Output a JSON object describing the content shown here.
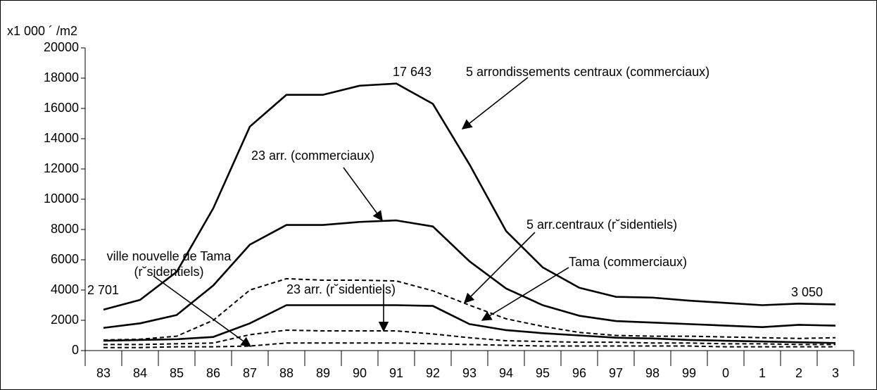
{
  "chart_data": {
    "type": "line",
    "y_label": "x1 000 ´ /m2",
    "categories": [
      "83",
      "84",
      "85",
      "86",
      "87",
      "88",
      "89",
      "90",
      "91",
      "92",
      "93",
      "94",
      "95",
      "96",
      "97",
      "98",
      "99",
      "0",
      "1",
      "2",
      "3"
    ],
    "ylim": [
      0,
      20000
    ],
    "yticks": [
      0,
      2000,
      4000,
      6000,
      8000,
      10000,
      12000,
      14000,
      16000,
      18000,
      20000
    ],
    "grid": false,
    "series": [
      {
        "name": "5 arrondissements centraux (commerciaux)",
        "color": "#000000",
        "dashed": false,
        "values": [
          2701,
          3350,
          5200,
          9400,
          14800,
          16900,
          16900,
          17500,
          17643,
          16300,
          12300,
          7900,
          5500,
          4150,
          3550,
          3500,
          3300,
          3150,
          3000,
          3100,
          3050
        ],
        "value_labels": [
          "2 701",
          null,
          null,
          null,
          null,
          null,
          null,
          null,
          "17 643",
          null,
          null,
          null,
          null,
          null,
          null,
          null,
          null,
          null,
          null,
          null,
          "3 050"
        ]
      },
      {
        "name": "23 arr. (commerciaux)",
        "color": "#000000",
        "dashed": false,
        "values": [
          1500,
          1800,
          2350,
          4300,
          7000,
          8300,
          8300,
          8500,
          8600,
          8200,
          5900,
          4100,
          3000,
          2300,
          1950,
          1850,
          1750,
          1650,
          1550,
          1700,
          1650
        ]
      },
      {
        "name": "Tama (commerciaux)",
        "color": "#000000",
        "dashed": false,
        "values": [
          650,
          700,
          750,
          900,
          1800,
          3000,
          3000,
          3000,
          3000,
          2950,
          1750,
          1350,
          1150,
          1000,
          850,
          800,
          700,
          650,
          600,
          550,
          500
        ]
      },
      {
        "name": "5 arr.centraux (r˘sidentiels)",
        "color": "#000000",
        "dashed": true,
        "values": [
          700,
          750,
          950,
          2000,
          4000,
          4750,
          4650,
          4650,
          4600,
          3950,
          3000,
          2100,
          1600,
          1200,
          1000,
          950,
          950,
          900,
          850,
          800,
          850
        ]
      },
      {
        "name": "23 arr. (r˘sidentiels)",
        "color": "#000000",
        "dashed": true,
        "values": [
          400,
          400,
          450,
          500,
          1050,
          1350,
          1300,
          1300,
          1300,
          1100,
          850,
          650,
          600,
          550,
          550,
          500,
          500,
          450,
          450,
          400,
          400
        ]
      },
      {
        "name": "ville nouvelle de Tama (r˘sidentiels)",
        "color": "#000000",
        "dashed": true,
        "values": [
          200,
          200,
          250,
          250,
          300,
          500,
          500,
          500,
          500,
          450,
          400,
          350,
          300,
          300,
          300,
          300,
          300,
          250,
          250,
          250,
          250
        ]
      }
    ]
  }
}
